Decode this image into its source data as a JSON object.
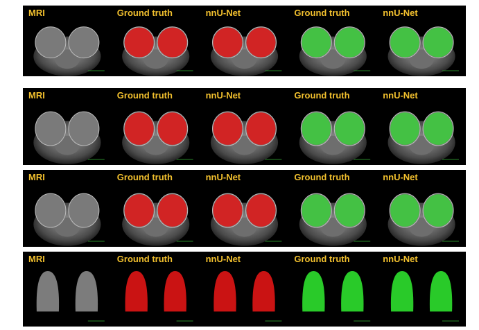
{
  "rows": [
    {
      "panels": [
        "MRI",
        "Ground truth",
        "nnU-Net",
        "Ground truth",
        "nnU-Net"
      ]
    },
    {
      "panels": [
        "MRI",
        "Ground truth",
        "nnU-Net",
        "Ground truth",
        "nnU-Net"
      ]
    },
    {
      "panels": [
        "MRI",
        "Ground truth",
        "nnU-Net",
        "Ground truth",
        "nnU-Net"
      ]
    },
    {
      "panels": [
        "MRI",
        "Ground truth",
        "nnU-Net",
        "Ground truth",
        "nnU-Net"
      ]
    }
  ]
}
